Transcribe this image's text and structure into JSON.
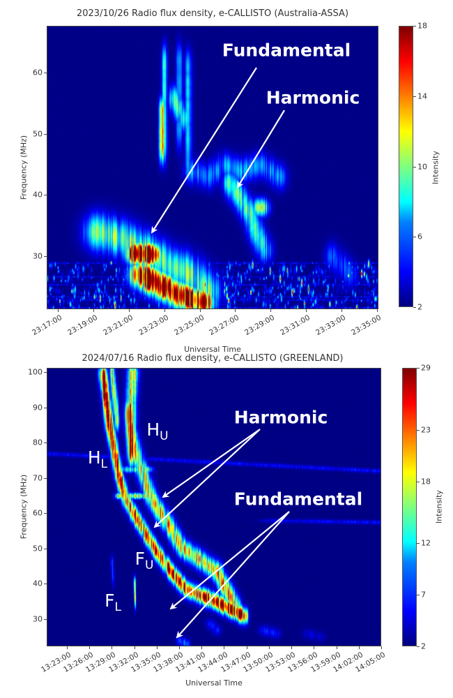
{
  "chart_data": [
    {
      "type": "heatmap",
      "title": "2023/10/26  Radio flux density, e-CALLISTO (Australia-ASSA)",
      "xlabel": "Universal Time",
      "ylabel": "Frequency (MHz)",
      "colorbar_label": "Intensity",
      "colormap": "jet",
      "xlim": [
        "23:16:22",
        "23:35:05"
      ],
      "ylim": [
        21.3,
        67.7
      ],
      "clim": [
        2,
        18
      ],
      "x_ticks": [
        "23:17:00",
        "23:19:00",
        "23:21:00",
        "23:23:00",
        "23:25:00",
        "23:27:00",
        "23:29:00",
        "23:31:00",
        "23:33:00",
        "23:35:00"
      ],
      "y_ticks": [
        30,
        40,
        50,
        60
      ],
      "colorbar_ticks": [
        2,
        6,
        10,
        14,
        18
      ],
      "rfi_band_mhz": [
        21.3,
        29
      ],
      "annotations": [
        {
          "text": "Fundamental",
          "points_to": [
            "23:22:40",
            33
          ]
        },
        {
          "text": "Harmonic",
          "points_to": [
            "23:27:10",
            41
          ]
        }
      ],
      "bursts": [
        {
          "path": [
            [
              "23:21:20",
              30.5
            ],
            [
              "23:22:20",
              30.3
            ]
          ],
          "intensity": 22,
          "dt": 0.35,
          "df": 1.2
        },
        {
          "path": [
            [
              "23:21:40",
              27
            ],
            [
              "23:23:00",
              25
            ],
            [
              "23:24:00",
              23.5
            ],
            [
              "23:25:10",
              22.5
            ]
          ],
          "intensity": 20,
          "dt": 0.45,
          "df": 1.4
        },
        {
          "path": [
            [
              "23:19:15",
              34
            ],
            [
              "23:20:30",
              33
            ],
            [
              "23:21:30",
              31.5
            ],
            [
              "23:23:00",
              29
            ],
            [
              "23:24:30",
              27
            ],
            [
              "23:25:30",
              24
            ]
          ],
          "intensity": 9,
          "dt": 0.55,
          "df": 2
        },
        {
          "path": [
            [
              "23:22:50",
              54
            ],
            [
              "23:22:50",
              47
            ]
          ],
          "intensity": 13,
          "dt": 0.1,
          "df": 1.5
        },
        {
          "path": [
            [
              "23:23:00",
              62
            ],
            [
              "23:23:00",
              48
            ]
          ],
          "intensity": 7,
          "dt": 0.12,
          "df": 2
        },
        {
          "path": [
            [
              "23:23:50",
              62
            ],
            [
              "23:23:50",
              50
            ]
          ],
          "intensity": 7,
          "dt": 0.12,
          "df": 2
        },
        {
          "path": [
            [
              "23:24:20",
              61
            ],
            [
              "23:24:20",
              45
            ]
          ],
          "intensity": 6,
          "dt": 0.15,
          "df": 2
        },
        {
          "path": [
            [
              "23:23:30",
              56
            ],
            [
              "23:24:10",
              52
            ]
          ],
          "intensity": 9,
          "dt": 0.2,
          "df": 1.5
        },
        {
          "path": [
            [
              "23:24:30",
              44
            ],
            [
              "23:25:30",
              43
            ],
            [
              "23:26:20",
              45
            ],
            [
              "23:27:20",
              44
            ],
            [
              "23:28:30",
              45
            ],
            [
              "23:29:30",
              43
            ]
          ],
          "intensity": 6,
          "dt": 0.3,
          "df": 1.4
        },
        {
          "path": [
            [
              "23:26:40",
              42
            ],
            [
              "23:27:10",
              40
            ],
            [
              "23:27:50",
              37
            ],
            [
              "23:28:10",
              34
            ],
            [
              "23:28:40",
              31
            ]
          ],
          "intensity": 8,
          "dt": 0.3,
          "df": 1.4
        },
        {
          "path": [
            [
              "23:28:20",
              38
            ],
            [
              "23:28:40",
              38
            ]
          ],
          "intensity": 11,
          "dt": 0.2,
          "df": 1
        },
        {
          "path": [
            [
              "23:32:30",
              30
            ],
            [
              "23:33:30",
              27
            ]
          ],
          "intensity": 5,
          "dt": 0.3,
          "df": 1.5
        },
        {
          "path": [
            [
              "23:19:30",
              36
            ],
            [
              "23:20:00",
              34
            ]
          ],
          "intensity": 5,
          "dt": 0.2,
          "df": 1
        }
      ]
    },
    {
      "type": "heatmap",
      "title": "2024/07/16  Radio flux density, e-CALLISTO (GREENLAND)",
      "xlabel": "Universal Time",
      "ylabel": "Frequency (MHz)",
      "colorbar_label": "Intensity",
      "colormap": "jet",
      "xlim": [
        "13:20:18",
        "14:05:00"
      ],
      "ylim": [
        22.3,
        101.2
      ],
      "clim": [
        2,
        29
      ],
      "x_ticks": [
        "13:23:00",
        "13:26:00",
        "13:29:00",
        "13:32:00",
        "13:35:00",
        "13:38:00",
        "13:41:00",
        "13:44:00",
        "13:47:00",
        "13:50:00",
        "13:53:00",
        "13:56:00",
        "13:59:00",
        "14:02:00",
        "14:05:00"
      ],
      "y_ticks": [
        30,
        40,
        50,
        60,
        70,
        80,
        90,
        100
      ],
      "colorbar_ticks": [
        2,
        7,
        12,
        18,
        23,
        29
      ],
      "annotations": [
        {
          "text": "Harmonic"
        },
        {
          "text": "Fundamental"
        },
        {
          "text": "H",
          "sub": "U"
        },
        {
          "text": "H",
          "sub": "L"
        },
        {
          "text": "F",
          "sub": "U"
        },
        {
          "text": "F",
          "sub": "L"
        }
      ],
      "bursts": [
        {
          "path": [
            [
              "13:27:45",
              100
            ],
            [
              "13:28:40",
              85
            ],
            [
              "13:29:54",
              71
            ],
            [
              "13:30:50",
              64
            ],
            [
              "13:32:02",
              59.5
            ],
            [
              "13:34:50",
              49.6
            ],
            [
              "13:37:04",
              43
            ],
            [
              "13:38:56",
              38.5
            ],
            [
              "13:42:56",
              35
            ],
            [
              "13:46:40",
              31
            ]
          ],
          "intensity": 28,
          "dt": 0.35,
          "df": 1.5
        },
        {
          "path": [
            [
              "13:31:46",
              100
            ],
            [
              "13:31:30",
              90
            ],
            [
              "13:31:29",
              84
            ],
            [
              "13:32:20",
              76
            ],
            [
              "13:33:00",
              72
            ],
            [
              "13:34:17",
              64
            ],
            [
              "13:36:30",
              57
            ],
            [
              "13:38:17",
              50.4
            ],
            [
              "13:42:56",
              43.7
            ],
            [
              "13:45:28",
              33.7
            ]
          ],
          "intensity": 20,
          "dt": 0.5,
          "df": 1.8
        },
        {
          "path": [
            [
              "13:31:20",
              88
            ],
            [
              "13:31:40",
              78
            ]
          ],
          "intensity": 32,
          "dt": 0.4,
          "df": 3
        },
        {
          "path": [
            [
              "13:29:00",
              100
            ],
            [
              "13:29:40",
              86
            ]
          ],
          "intensity": 17,
          "dt": 0.25,
          "df": 2
        },
        {
          "path": [
            [
              "13:30:00",
              65
            ],
            [
              "13:34:30",
              65
            ]
          ],
          "intensity": 20,
          "dt": 0.4,
          "df": 0.6
        },
        {
          "path": [
            [
              "13:30:30",
              72.5
            ],
            [
              "13:34:00",
              72.5
            ]
          ],
          "intensity": 15,
          "dt": 0.4,
          "df": 0.7
        },
        {
          "path": [
            [
              "13:20:18",
              77
            ],
            [
              "14:05:00",
              72
            ]
          ],
          "intensity": 5,
          "dt": 1,
          "df": 0.4
        },
        {
          "path": [
            [
              "13:50:00",
              58
            ],
            [
              "14:05:00",
              57.5
            ]
          ],
          "intensity": 5,
          "dt": 1,
          "df": 0.4
        },
        {
          "path": [
            [
              "13:32:00",
              40
            ],
            [
              "13:32:05",
              35
            ]
          ],
          "intensity": 18,
          "dt": 0.1,
          "df": 1.5
        },
        {
          "path": [
            [
              "13:29:00",
              46
            ],
            [
              "13:29:10",
              41
            ]
          ],
          "intensity": 6,
          "dt": 0.15,
          "df": 1.5
        },
        {
          "path": [
            [
              "13:38:00",
              24
            ],
            [
              "13:39:00",
              23
            ]
          ],
          "intensity": 8,
          "dt": 0.3,
          "df": 1
        },
        {
          "path": [
            [
              "13:42:00",
              29
            ],
            [
              "13:43:00",
              27
            ]
          ],
          "intensity": 6,
          "dt": 0.4,
          "df": 1
        },
        {
          "path": [
            [
              "13:49:00",
              27
            ],
            [
              "13:51:00",
              26
            ]
          ],
          "intensity": 6,
          "dt": 0.4,
          "df": 1
        },
        {
          "path": [
            [
              "13:55:00",
              26
            ],
            [
              "13:57:00",
              25
            ]
          ],
          "intensity": 4,
          "dt": 0.4,
          "df": 1
        }
      ]
    }
  ]
}
